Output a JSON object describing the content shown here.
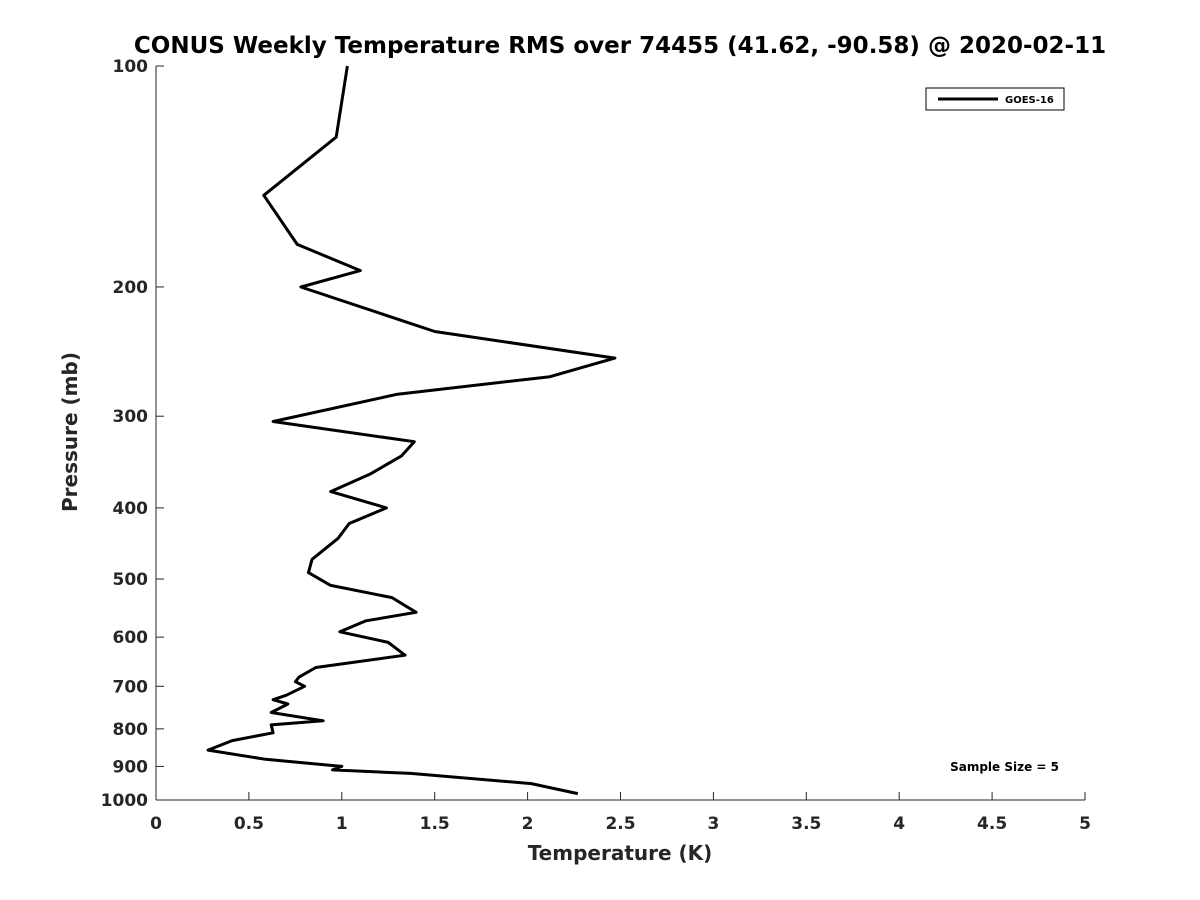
{
  "chart_data": {
    "type": "line",
    "title": "CONUS Weekly Temperature RMS over 74455 (41.62, -90.58) @ 2020-02-11",
    "xlabel": "Temperature (K)",
    "ylabel": "Pressure (mb)",
    "xlim": [
      0,
      5
    ],
    "ylim": [
      1000,
      100
    ],
    "y_scale": "log",
    "y_reversed": true,
    "grid": false,
    "x_ticks": [
      "0",
      "0.5",
      "1",
      "1.5",
      "2",
      "2.5",
      "3",
      "3.5",
      "4",
      "4.5",
      "5"
    ],
    "y_ticks": [
      "100",
      "200",
      "300",
      "400",
      "500",
      "600",
      "700",
      "800",
      "900",
      "1000"
    ],
    "legend_position": "top-right",
    "annotation": "Sample Size = 5",
    "series": [
      {
        "name": "GOES-16",
        "color": "#000000",
        "points": [
          [
            1.03,
            100
          ],
          [
            0.97,
            125
          ],
          [
            0.58,
            150
          ],
          [
            0.76,
            175
          ],
          [
            1.1,
            190
          ],
          [
            0.78,
            200
          ],
          [
            1.5,
            230
          ],
          [
            2.47,
            250
          ],
          [
            2.12,
            265
          ],
          [
            1.3,
            280
          ],
          [
            0.63,
            305
          ],
          [
            1.39,
            325
          ],
          [
            1.32,
            340
          ],
          [
            1.15,
            360
          ],
          [
            0.94,
            380
          ],
          [
            1.24,
            400
          ],
          [
            1.04,
            420
          ],
          [
            0.98,
            440
          ],
          [
            0.84,
            470
          ],
          [
            0.82,
            490
          ],
          [
            0.94,
            510
          ],
          [
            1.27,
            530
          ],
          [
            1.4,
            555
          ],
          [
            1.13,
            570
          ],
          [
            0.99,
            590
          ],
          [
            1.25,
            610
          ],
          [
            1.34,
            635
          ],
          [
            0.86,
            660
          ],
          [
            0.77,
            680
          ],
          [
            0.75,
            690
          ],
          [
            0.8,
            700
          ],
          [
            0.7,
            720
          ],
          [
            0.63,
            730
          ],
          [
            0.71,
            740
          ],
          [
            0.62,
            760
          ],
          [
            0.9,
            780
          ],
          [
            0.62,
            790
          ],
          [
            0.63,
            810
          ],
          [
            0.41,
            830
          ],
          [
            0.28,
            855
          ],
          [
            0.59,
            880
          ],
          [
            1.0,
            900
          ],
          [
            0.95,
            910
          ],
          [
            1.37,
            920
          ],
          [
            2.02,
            950
          ],
          [
            2.27,
            980
          ]
        ]
      }
    ]
  }
}
